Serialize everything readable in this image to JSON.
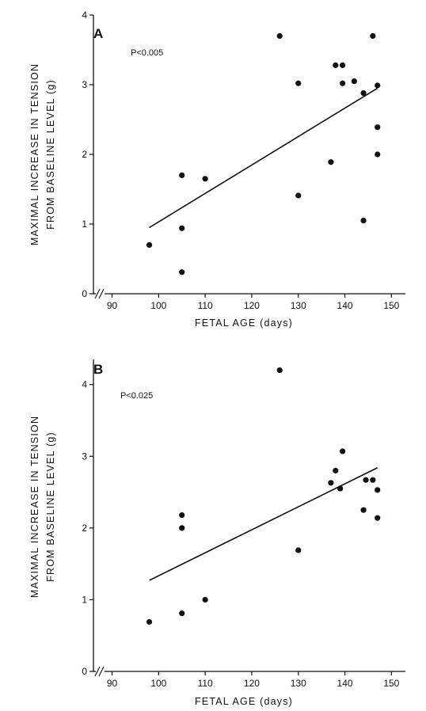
{
  "chart_data": [
    {
      "type": "scatter",
      "panel": "A",
      "annotation": "P<0.005",
      "xlabel": "FETAL AGE (days)",
      "ylabel_line1": "MAXIMAL INCREASE IN TENSION",
      "ylabel_line2": "FROM BASELINE LEVEL (g)",
      "xlim": [
        86,
        153
      ],
      "ylim": [
        0,
        4
      ],
      "xticks": [
        90,
        100,
        110,
        120,
        130,
        140,
        150
      ],
      "yticks": [
        0,
        1,
        2,
        3,
        4
      ],
      "points": [
        {
          "x": 98,
          "y": 0.7
        },
        {
          "x": 105,
          "y": 0.31
        },
        {
          "x": 105,
          "y": 0.94
        },
        {
          "x": 105,
          "y": 1.7
        },
        {
          "x": 110,
          "y": 1.65
        },
        {
          "x": 126,
          "y": 3.7
        },
        {
          "x": 130,
          "y": 3.02
        },
        {
          "x": 130,
          "y": 1.41
        },
        {
          "x": 137,
          "y": 1.89
        },
        {
          "x": 138,
          "y": 3.28
        },
        {
          "x": 139.5,
          "y": 3.28
        },
        {
          "x": 139.5,
          "y": 3.02
        },
        {
          "x": 142,
          "y": 3.05
        },
        {
          "x": 144,
          "y": 2.88
        },
        {
          "x": 144,
          "y": 1.05
        },
        {
          "x": 146,
          "y": 3.7
        },
        {
          "x": 147,
          "y": 2.99
        },
        {
          "x": 147,
          "y": 2.39
        },
        {
          "x": 147,
          "y": 2.0
        }
      ],
      "fit": {
        "x": [
          98,
          147
        ],
        "y": [
          0.95,
          2.95
        ]
      }
    },
    {
      "type": "scatter",
      "panel": "B",
      "annotation": "P<0.025",
      "xlabel": "FETAL AGE (days)",
      "ylabel_line1": "MAXIMAL INCREASE IN TENSION",
      "ylabel_line2": "FROM BASELINE LEVEL (g)",
      "xlim": [
        86,
        153
      ],
      "ylim": [
        0,
        4.35
      ],
      "xticks": [
        90,
        100,
        110,
        120,
        130,
        140,
        150
      ],
      "yticks": [
        0,
        1,
        2,
        3,
        4
      ],
      "points": [
        {
          "x": 98,
          "y": 0.69
        },
        {
          "x": 105,
          "y": 0.81
        },
        {
          "x": 105,
          "y": 2.0
        },
        {
          "x": 105,
          "y": 2.18
        },
        {
          "x": 110,
          "y": 1.0
        },
        {
          "x": 126,
          "y": 4.2
        },
        {
          "x": 130,
          "y": 1.69
        },
        {
          "x": 137,
          "y": 2.63
        },
        {
          "x": 138,
          "y": 2.8
        },
        {
          "x": 139,
          "y": 2.55
        },
        {
          "x": 139.5,
          "y": 3.07
        },
        {
          "x": 144,
          "y": 2.25
        },
        {
          "x": 144.5,
          "y": 2.67
        },
        {
          "x": 146,
          "y": 2.67
        },
        {
          "x": 147,
          "y": 2.53
        },
        {
          "x": 147,
          "y": 2.14
        }
      ],
      "fit": {
        "x": [
          98,
          147
        ],
        "y": [
          1.27,
          2.84
        ]
      }
    }
  ]
}
